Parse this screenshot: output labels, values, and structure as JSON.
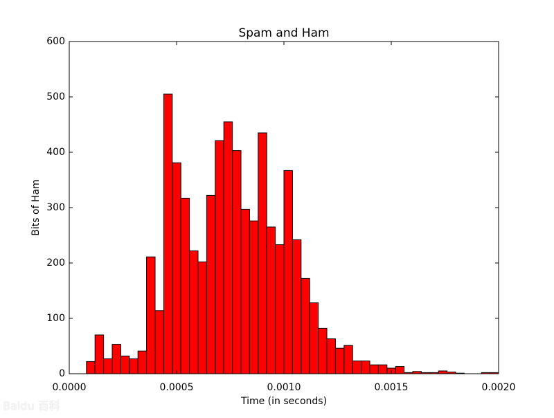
{
  "chart_data": {
    "type": "bar",
    "title": "Spam and Ham",
    "xlabel": "Time (in seconds)",
    "ylabel": "Bits of Ham",
    "xlim": [
      0,
      0.002
    ],
    "ylim": [
      0,
      600
    ],
    "xticks": [
      "0.0000",
      "0.0005",
      "0.0010",
      "0.0015",
      "0.0020"
    ],
    "xtick_values": [
      0,
      0.0005,
      0.001,
      0.0015,
      0.002
    ],
    "yticks": [
      "0",
      "100",
      "200",
      "300",
      "400",
      "500",
      "600"
    ],
    "ytick_values": [
      0,
      100,
      200,
      300,
      400,
      500,
      600
    ],
    "grid": false,
    "bar_color": "#ff0000",
    "edge_color": "#000000",
    "bin_start": 8e-05,
    "bin_width": 4e-05,
    "values": [
      22,
      70,
      27,
      53,
      32,
      27,
      41,
      211,
      114,
      505,
      381,
      317,
      222,
      202,
      322,
      421,
      455,
      403,
      297,
      276,
      435,
      265,
      233,
      367,
      242,
      172,
      128,
      82,
      63,
      46,
      51,
      23,
      23,
      16,
      16,
      10,
      13,
      2,
      4,
      2,
      2,
      5,
      3,
      1,
      0,
      0,
      2,
      2
    ]
  },
  "watermark": "Baidu 百科"
}
